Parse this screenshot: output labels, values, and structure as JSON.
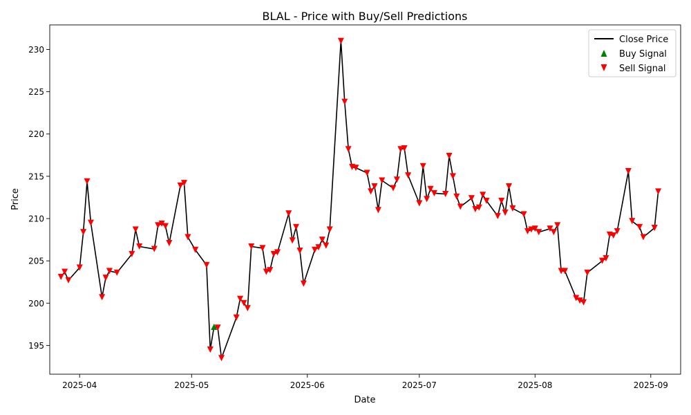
{
  "chart_data": {
    "type": "line",
    "title": "BLAL - Price with Buy/Sell Predictions",
    "xlabel": "Date",
    "ylabel": "Price",
    "ylim": [
      191.6,
      232.9
    ],
    "xlim": [
      "2025-03-24",
      "2025-09-09"
    ],
    "grid": false,
    "legend_position": "top-right",
    "x_ticks": [
      {
        "date": "2025-04-01",
        "label": "2025-04"
      },
      {
        "date": "2025-05-01",
        "label": "2025-05"
      },
      {
        "date": "2025-06-01",
        "label": "2025-06"
      },
      {
        "date": "2025-07-01",
        "label": "2025-07"
      },
      {
        "date": "2025-08-01",
        "label": "2025-08"
      },
      {
        "date": "2025-09-01",
        "label": "2025-09"
      }
    ],
    "y_ticks": [
      195,
      200,
      205,
      210,
      215,
      220,
      225,
      230
    ],
    "legend": [
      {
        "label": "Close Price",
        "kind": "line",
        "color": "#000000"
      },
      {
        "label": "Buy Signal",
        "kind": "up-triangle",
        "color": "#008000"
      },
      {
        "label": "Sell Signal",
        "kind": "down-triangle",
        "color": "#ff0000"
      }
    ],
    "colors": {
      "close": "#000000",
      "buy": "#008000",
      "sell": "#ff0000"
    },
    "series": [
      {
        "name": "Close Price",
        "points": [
          [
            "2025-03-27",
            203.1
          ],
          [
            "2025-03-28",
            203.7
          ],
          [
            "2025-03-29",
            202.7
          ],
          [
            "2025-04-01",
            204.2
          ],
          [
            "2025-04-02",
            208.4
          ],
          [
            "2025-04-03",
            214.4
          ],
          [
            "2025-04-04",
            209.5
          ],
          [
            "2025-04-07",
            200.7
          ],
          [
            "2025-04-08",
            203.0
          ],
          [
            "2025-04-09",
            203.8
          ],
          [
            "2025-04-11",
            203.6
          ],
          [
            "2025-04-15",
            205.8
          ],
          [
            "2025-04-16",
            208.7
          ],
          [
            "2025-04-17",
            206.7
          ],
          [
            "2025-04-21",
            206.4
          ],
          [
            "2025-04-22",
            209.2
          ],
          [
            "2025-04-23",
            209.4
          ],
          [
            "2025-04-24",
            209.1
          ],
          [
            "2025-04-25",
            207.1
          ],
          [
            "2025-04-28",
            213.9
          ],
          [
            "2025-04-29",
            214.2
          ],
          [
            "2025-04-30",
            207.8
          ],
          [
            "2025-05-02",
            206.3
          ],
          [
            "2025-05-05",
            204.5
          ],
          [
            "2025-05-06",
            194.5
          ],
          [
            "2025-05-07",
            197.2
          ],
          [
            "2025-05-08",
            197.1
          ],
          [
            "2025-05-09",
            193.5
          ],
          [
            "2025-05-13",
            198.3
          ],
          [
            "2025-05-14",
            200.5
          ],
          [
            "2025-05-15",
            200.0
          ],
          [
            "2025-05-16",
            199.4
          ],
          [
            "2025-05-17",
            206.7
          ],
          [
            "2025-05-20",
            206.5
          ],
          [
            "2025-05-21",
            203.7
          ],
          [
            "2025-05-22",
            203.9
          ],
          [
            "2025-05-23",
            205.8
          ],
          [
            "2025-05-24",
            206.0
          ],
          [
            "2025-05-27",
            210.6
          ],
          [
            "2025-05-28",
            207.4
          ],
          [
            "2025-05-29",
            209.0
          ],
          [
            "2025-05-30",
            206.2
          ],
          [
            "2025-05-31",
            202.3
          ],
          [
            "2025-06-03",
            206.3
          ],
          [
            "2025-06-04",
            206.6
          ],
          [
            "2025-06-05",
            207.5
          ],
          [
            "2025-06-06",
            206.8
          ],
          [
            "2025-06-07",
            208.7
          ],
          [
            "2025-06-10",
            231.0
          ],
          [
            "2025-06-11",
            223.8
          ],
          [
            "2025-06-12",
            218.2
          ],
          [
            "2025-06-13",
            216.1
          ],
          [
            "2025-06-14",
            216.0
          ],
          [
            "2025-06-17",
            215.4
          ],
          [
            "2025-06-18",
            213.2
          ],
          [
            "2025-06-19",
            213.8
          ],
          [
            "2025-06-20",
            211.0
          ],
          [
            "2025-06-21",
            214.5
          ],
          [
            "2025-06-24",
            213.6
          ],
          [
            "2025-06-25",
            214.6
          ],
          [
            "2025-06-26",
            218.2
          ],
          [
            "2025-06-27",
            218.3
          ],
          [
            "2025-06-28",
            215.1
          ],
          [
            "2025-07-01",
            211.8
          ],
          [
            "2025-07-02",
            216.2
          ],
          [
            "2025-07-03",
            212.3
          ],
          [
            "2025-07-04",
            213.5
          ],
          [
            "2025-07-05",
            213.0
          ],
          [
            "2025-07-08",
            212.9
          ],
          [
            "2025-07-09",
            217.4
          ],
          [
            "2025-07-10",
            215.0
          ],
          [
            "2025-07-11",
            212.6
          ],
          [
            "2025-07-12",
            211.4
          ],
          [
            "2025-07-15",
            212.4
          ],
          [
            "2025-07-16",
            211.1
          ],
          [
            "2025-07-17",
            211.3
          ],
          [
            "2025-07-18",
            212.8
          ],
          [
            "2025-07-19",
            212.1
          ],
          [
            "2025-07-22",
            210.3
          ],
          [
            "2025-07-23",
            212.1
          ],
          [
            "2025-07-24",
            210.7
          ],
          [
            "2025-07-25",
            213.8
          ],
          [
            "2025-07-26",
            211.2
          ],
          [
            "2025-07-29",
            210.5
          ],
          [
            "2025-07-30",
            208.5
          ],
          [
            "2025-07-31",
            208.7
          ],
          [
            "2025-08-01",
            208.8
          ],
          [
            "2025-08-02",
            208.4
          ],
          [
            "2025-08-05",
            208.8
          ],
          [
            "2025-08-06",
            208.4
          ],
          [
            "2025-08-07",
            209.2
          ],
          [
            "2025-08-08",
            203.8
          ],
          [
            "2025-08-09",
            203.8
          ],
          [
            "2025-08-12",
            200.6
          ],
          [
            "2025-08-13",
            200.3
          ],
          [
            "2025-08-14",
            200.1
          ],
          [
            "2025-08-15",
            203.6
          ],
          [
            "2025-08-19",
            205.0
          ],
          [
            "2025-08-20",
            205.3
          ],
          [
            "2025-08-21",
            208.1
          ],
          [
            "2025-08-22",
            208.0
          ],
          [
            "2025-08-23",
            208.5
          ],
          [
            "2025-08-26",
            215.6
          ],
          [
            "2025-08-27",
            209.7
          ],
          [
            "2025-08-29",
            209.0
          ],
          [
            "2025-08-30",
            207.8
          ],
          [
            "2025-09-02",
            208.9
          ],
          [
            "2025-09-03",
            213.2
          ]
        ]
      },
      {
        "name": "Buy Signal",
        "points": [
          [
            "2025-05-07",
            197.2
          ]
        ]
      },
      {
        "name": "Sell Signal",
        "points": [
          [
            "2025-03-27",
            203.1
          ],
          [
            "2025-03-28",
            203.7
          ],
          [
            "2025-03-29",
            202.7
          ],
          [
            "2025-04-01",
            204.2
          ],
          [
            "2025-04-02",
            208.4
          ],
          [
            "2025-04-03",
            214.4
          ],
          [
            "2025-04-04",
            209.5
          ],
          [
            "2025-04-07",
            200.7
          ],
          [
            "2025-04-08",
            203.0
          ],
          [
            "2025-04-09",
            203.8
          ],
          [
            "2025-04-11",
            203.6
          ],
          [
            "2025-04-15",
            205.8
          ],
          [
            "2025-04-16",
            208.7
          ],
          [
            "2025-04-17",
            206.7
          ],
          [
            "2025-04-21",
            206.4
          ],
          [
            "2025-04-22",
            209.2
          ],
          [
            "2025-04-23",
            209.4
          ],
          [
            "2025-04-24",
            209.1
          ],
          [
            "2025-04-25",
            207.1
          ],
          [
            "2025-04-28",
            213.9
          ],
          [
            "2025-04-29",
            214.2
          ],
          [
            "2025-04-30",
            207.8
          ],
          [
            "2025-05-02",
            206.3
          ],
          [
            "2025-05-05",
            204.5
          ],
          [
            "2025-05-06",
            194.5
          ],
          [
            "2025-05-08",
            197.1
          ],
          [
            "2025-05-09",
            193.5
          ],
          [
            "2025-05-13",
            198.3
          ],
          [
            "2025-05-14",
            200.5
          ],
          [
            "2025-05-15",
            200.0
          ],
          [
            "2025-05-16",
            199.4
          ],
          [
            "2025-05-17",
            206.7
          ],
          [
            "2025-05-20",
            206.5
          ],
          [
            "2025-05-21",
            203.7
          ],
          [
            "2025-05-22",
            203.9
          ],
          [
            "2025-05-23",
            205.8
          ],
          [
            "2025-05-24",
            206.0
          ],
          [
            "2025-05-27",
            210.6
          ],
          [
            "2025-05-28",
            207.4
          ],
          [
            "2025-05-29",
            209.0
          ],
          [
            "2025-05-30",
            206.2
          ],
          [
            "2025-05-31",
            202.3
          ],
          [
            "2025-06-03",
            206.3
          ],
          [
            "2025-06-04",
            206.6
          ],
          [
            "2025-06-05",
            207.5
          ],
          [
            "2025-06-06",
            206.8
          ],
          [
            "2025-06-07",
            208.7
          ],
          [
            "2025-06-10",
            231.0
          ],
          [
            "2025-06-11",
            223.8
          ],
          [
            "2025-06-12",
            218.2
          ],
          [
            "2025-06-13",
            216.1
          ],
          [
            "2025-06-14",
            216.0
          ],
          [
            "2025-06-17",
            215.4
          ],
          [
            "2025-06-18",
            213.2
          ],
          [
            "2025-06-19",
            213.8
          ],
          [
            "2025-06-20",
            211.0
          ],
          [
            "2025-06-21",
            214.5
          ],
          [
            "2025-06-24",
            213.6
          ],
          [
            "2025-06-25",
            214.6
          ],
          [
            "2025-06-26",
            218.2
          ],
          [
            "2025-06-27",
            218.3
          ],
          [
            "2025-06-28",
            215.1
          ],
          [
            "2025-07-01",
            211.8
          ],
          [
            "2025-07-02",
            216.2
          ],
          [
            "2025-07-03",
            212.3
          ],
          [
            "2025-07-04",
            213.5
          ],
          [
            "2025-07-05",
            213.0
          ],
          [
            "2025-07-08",
            212.9
          ],
          [
            "2025-07-09",
            217.4
          ],
          [
            "2025-07-10",
            215.0
          ],
          [
            "2025-07-11",
            212.6
          ],
          [
            "2025-07-12",
            211.4
          ],
          [
            "2025-07-15",
            212.4
          ],
          [
            "2025-07-16",
            211.1
          ],
          [
            "2025-07-17",
            211.3
          ],
          [
            "2025-07-18",
            212.8
          ],
          [
            "2025-07-19",
            212.1
          ],
          [
            "2025-07-22",
            210.3
          ],
          [
            "2025-07-23",
            212.1
          ],
          [
            "2025-07-24",
            210.7
          ],
          [
            "2025-07-25",
            213.8
          ],
          [
            "2025-07-26",
            211.2
          ],
          [
            "2025-07-29",
            210.5
          ],
          [
            "2025-07-30",
            208.5
          ],
          [
            "2025-07-31",
            208.7
          ],
          [
            "2025-08-01",
            208.8
          ],
          [
            "2025-08-02",
            208.4
          ],
          [
            "2025-08-05",
            208.8
          ],
          [
            "2025-08-06",
            208.4
          ],
          [
            "2025-08-07",
            209.2
          ],
          [
            "2025-08-08",
            203.8
          ],
          [
            "2025-08-09",
            203.8
          ],
          [
            "2025-08-12",
            200.6
          ],
          [
            "2025-08-13",
            200.3
          ],
          [
            "2025-08-14",
            200.1
          ],
          [
            "2025-08-15",
            203.6
          ],
          [
            "2025-08-19",
            205.0
          ],
          [
            "2025-08-20",
            205.3
          ],
          [
            "2025-08-21",
            208.1
          ],
          [
            "2025-08-22",
            208.0
          ],
          [
            "2025-08-23",
            208.5
          ],
          [
            "2025-08-26",
            215.6
          ],
          [
            "2025-08-27",
            209.7
          ],
          [
            "2025-08-29",
            209.0
          ],
          [
            "2025-08-30",
            207.8
          ],
          [
            "2025-09-02",
            208.9
          ],
          [
            "2025-09-03",
            213.2
          ]
        ]
      }
    ]
  }
}
